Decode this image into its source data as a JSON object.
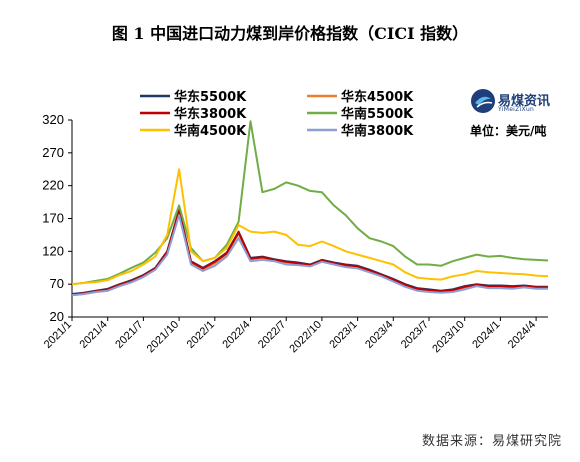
{
  "title": "图 1    中国进口动力煤到岸价格指数（CICI 指数）",
  "source": "数据来源：易煤研究院",
  "brand": {
    "name": "易煤资讯",
    "pinyin": "YiMeiZiXun",
    "logo_icon": "yimei-logo-icon"
  },
  "unit": "单位：美元/吨",
  "chart_data": {
    "type": "line",
    "ylim": [
      20,
      320
    ],
    "yticks": [
      20,
      70,
      120,
      170,
      220,
      270,
      320
    ],
    "xtick_labels": [
      "2021/1",
      "2021/4",
      "2021/7",
      "2021/10",
      "2022/1",
      "2022/4",
      "2022/7",
      "2022/10",
      "2023/1",
      "2023/4",
      "2023/7",
      "2023/10",
      "2024/1",
      "2024/4"
    ],
    "grid": false,
    "legend_position": "top",
    "series": [
      {
        "name": "华东5500K",
        "color": "#1f3864",
        "points": [
          [
            "2021/1",
            55
          ],
          [
            "2021/2",
            57
          ],
          [
            "2021/3",
            60
          ],
          [
            "2021/4",
            63
          ],
          [
            "2021/5",
            70
          ],
          [
            "2021/6",
            76
          ],
          [
            "2021/7",
            84
          ],
          [
            "2021/8",
            95
          ],
          [
            "2021/9",
            120
          ],
          [
            "2021/10",
            183
          ],
          [
            "2021/11",
            105
          ],
          [
            "2021/12",
            95
          ],
          [
            "2022/1",
            105
          ],
          [
            "2022/2",
            118
          ],
          [
            "2022/3",
            150
          ],
          [
            "2022/4",
            110
          ],
          [
            "2022/5",
            112
          ],
          [
            "2022/6",
            108
          ],
          [
            "2022/7",
            105
          ],
          [
            "2022/8",
            103
          ],
          [
            "2022/9",
            100
          ],
          [
            "2022/10",
            107
          ],
          [
            "2022/11",
            103
          ],
          [
            "2022/12",
            100
          ],
          [
            "2023/1",
            98
          ],
          [
            "2023/2",
            92
          ],
          [
            "2023/3",
            85
          ],
          [
            "2023/4",
            78
          ],
          [
            "2023/5",
            70
          ],
          [
            "2023/6",
            64
          ],
          [
            "2023/7",
            62
          ],
          [
            "2023/8",
            60
          ],
          [
            "2023/9",
            62
          ],
          [
            "2023/10",
            67
          ],
          [
            "2023/11",
            70
          ],
          [
            "2023/12",
            68
          ],
          [
            "2024/1",
            68
          ],
          [
            "2024/2",
            67
          ],
          [
            "2024/3",
            68
          ],
          [
            "2024/4",
            66
          ],
          [
            "2024/5",
            66
          ]
        ]
      },
      {
        "name": "华东4500K",
        "color": "#ed7d31",
        "points": [
          [
            "2021/1",
            53
          ],
          [
            "2021/2",
            55
          ],
          [
            "2021/3",
            58
          ],
          [
            "2021/4",
            60
          ],
          [
            "2021/5",
            67
          ],
          [
            "2021/6",
            73
          ],
          [
            "2021/7",
            81
          ],
          [
            "2021/8",
            92
          ],
          [
            "2021/9",
            117
          ],
          [
            "2021/10",
            180
          ],
          [
            "2021/11",
            102
          ],
          [
            "2021/12",
            92
          ],
          [
            "2022/1",
            102
          ],
          [
            "2022/2",
            115
          ],
          [
            "2022/3",
            147
          ],
          [
            "2022/4",
            108
          ],
          [
            "2022/5",
            110
          ],
          [
            "2022/6",
            106
          ],
          [
            "2022/7",
            103
          ],
          [
            "2022/8",
            101
          ],
          [
            "2022/9",
            98
          ],
          [
            "2022/10",
            105
          ],
          [
            "2022/11",
            101
          ],
          [
            "2022/12",
            98
          ],
          [
            "2023/1",
            96
          ],
          [
            "2023/2",
            90
          ],
          [
            "2023/3",
            83
          ],
          [
            "2023/4",
            76
          ],
          [
            "2023/5",
            68
          ],
          [
            "2023/6",
            62
          ],
          [
            "2023/7",
            60
          ],
          [
            "2023/8",
            58
          ],
          [
            "2023/9",
            60
          ],
          [
            "2023/10",
            65
          ],
          [
            "2023/11",
            68
          ],
          [
            "2023/12",
            66
          ],
          [
            "2024/1",
            66
          ],
          [
            "2024/2",
            65
          ],
          [
            "2024/3",
            66
          ],
          [
            "2024/4",
            64
          ],
          [
            "2024/5",
            64
          ]
        ]
      },
      {
        "name": "华东3800K",
        "color": "#c00000",
        "points": [
          [
            "2021/1",
            54
          ],
          [
            "2021/2",
            56
          ],
          [
            "2021/3",
            59
          ],
          [
            "2021/4",
            62
          ],
          [
            "2021/5",
            69
          ],
          [
            "2021/6",
            75
          ],
          [
            "2021/7",
            83
          ],
          [
            "2021/8",
            94
          ],
          [
            "2021/9",
            119
          ],
          [
            "2021/10",
            182
          ],
          [
            "2021/11",
            104
          ],
          [
            "2021/12",
            94
          ],
          [
            "2022/1",
            104
          ],
          [
            "2022/2",
            117
          ],
          [
            "2022/3",
            149
          ],
          [
            "2022/4",
            109
          ],
          [
            "2022/5",
            111
          ],
          [
            "2022/6",
            107
          ],
          [
            "2022/7",
            104
          ],
          [
            "2022/8",
            102
          ],
          [
            "2022/9",
            99
          ],
          [
            "2022/10",
            106
          ],
          [
            "2022/11",
            102
          ],
          [
            "2022/12",
            99
          ],
          [
            "2023/1",
            97
          ],
          [
            "2023/2",
            91
          ],
          [
            "2023/3",
            84
          ],
          [
            "2023/4",
            77
          ],
          [
            "2023/5",
            69
          ],
          [
            "2023/6",
            63
          ],
          [
            "2023/7",
            61
          ],
          [
            "2023/8",
            59
          ],
          [
            "2023/9",
            61
          ],
          [
            "2023/10",
            66
          ],
          [
            "2023/11",
            69
          ],
          [
            "2023/12",
            67
          ],
          [
            "2024/1",
            67
          ],
          [
            "2024/2",
            66
          ],
          [
            "2024/3",
            67
          ],
          [
            "2024/4",
            65
          ],
          [
            "2024/5",
            65
          ]
        ]
      },
      {
        "name": "华南5500K",
        "color": "#70ad47",
        "points": [
          [
            "2021/1",
            70
          ],
          [
            "2021/2",
            72
          ],
          [
            "2021/3",
            75
          ],
          [
            "2021/4",
            78
          ],
          [
            "2021/5",
            86
          ],
          [
            "2021/6",
            95
          ],
          [
            "2021/7",
            103
          ],
          [
            "2021/8",
            118
          ],
          [
            "2021/9",
            140
          ],
          [
            "2021/10",
            190
          ],
          [
            "2021/11",
            125
          ],
          [
            "2021/12",
            105
          ],
          [
            "2022/1",
            110
          ],
          [
            "2022/2",
            130
          ],
          [
            "2022/3",
            165
          ],
          [
            "2022/4",
            318
          ],
          [
            "2022/5",
            210
          ],
          [
            "2022/6",
            215
          ],
          [
            "2022/7",
            225
          ],
          [
            "2022/8",
            220
          ],
          [
            "2022/9",
            212
          ],
          [
            "2022/10",
            210
          ],
          [
            "2022/11",
            190
          ],
          [
            "2022/12",
            175
          ],
          [
            "2023/1",
            155
          ],
          [
            "2023/2",
            140
          ],
          [
            "2023/3",
            135
          ],
          [
            "2023/4",
            128
          ],
          [
            "2023/5",
            112
          ],
          [
            "2023/6",
            100
          ],
          [
            "2023/7",
            100
          ],
          [
            "2023/8",
            98
          ],
          [
            "2023/9",
            105
          ],
          [
            "2023/10",
            110
          ],
          [
            "2023/11",
            115
          ],
          [
            "2023/12",
            112
          ],
          [
            "2024/1",
            113
          ],
          [
            "2024/2",
            110
          ],
          [
            "2024/3",
            108
          ],
          [
            "2024/4",
            107
          ],
          [
            "2024/5",
            106
          ]
        ]
      },
      {
        "name": "华南4500K",
        "color": "#ffc000",
        "points": [
          [
            "2021/1",
            70
          ],
          [
            "2021/2",
            72
          ],
          [
            "2021/3",
            73
          ],
          [
            "2021/4",
            76
          ],
          [
            "2021/5",
            84
          ],
          [
            "2021/6",
            90
          ],
          [
            "2021/7",
            100
          ],
          [
            "2021/8",
            112
          ],
          [
            "2021/9",
            145
          ],
          [
            "2021/10",
            245
          ],
          [
            "2021/11",
            120
          ],
          [
            "2021/12",
            105
          ],
          [
            "2022/1",
            110
          ],
          [
            "2022/2",
            125
          ],
          [
            "2022/3",
            160
          ],
          [
            "2022/4",
            150
          ],
          [
            "2022/5",
            148
          ],
          [
            "2022/6",
            150
          ],
          [
            "2022/7",
            145
          ],
          [
            "2022/8",
            130
          ],
          [
            "2022/9",
            128
          ],
          [
            "2022/10",
            135
          ],
          [
            "2022/11",
            128
          ],
          [
            "2022/12",
            120
          ],
          [
            "2023/1",
            115
          ],
          [
            "2023/2",
            110
          ],
          [
            "2023/3",
            105
          ],
          [
            "2023/4",
            100
          ],
          [
            "2023/5",
            88
          ],
          [
            "2023/6",
            80
          ],
          [
            "2023/7",
            78
          ],
          [
            "2023/8",
            77
          ],
          [
            "2023/9",
            82
          ],
          [
            "2023/10",
            85
          ],
          [
            "2023/11",
            90
          ],
          [
            "2023/12",
            88
          ],
          [
            "2024/1",
            87
          ],
          [
            "2024/2",
            86
          ],
          [
            "2024/3",
            85
          ],
          [
            "2024/4",
            83
          ],
          [
            "2024/5",
            82
          ]
        ]
      },
      {
        "name": "华南3800K",
        "color": "#8e9fd6",
        "points": [
          [
            "2021/1",
            53
          ],
          [
            "2021/2",
            55
          ],
          [
            "2021/3",
            58
          ],
          [
            "2021/4",
            60
          ],
          [
            "2021/5",
            67
          ],
          [
            "2021/6",
            73
          ],
          [
            "2021/7",
            81
          ],
          [
            "2021/8",
            92
          ],
          [
            "2021/9",
            115
          ],
          [
            "2021/10",
            175
          ],
          [
            "2021/11",
            100
          ],
          [
            "2021/12",
            90
          ],
          [
            "2022/1",
            98
          ],
          [
            "2022/2",
            112
          ],
          [
            "2022/3",
            140
          ],
          [
            "2022/4",
            105
          ],
          [
            "2022/5",
            107
          ],
          [
            "2022/6",
            105
          ],
          [
            "2022/7",
            100
          ],
          [
            "2022/8",
            99
          ],
          [
            "2022/9",
            97
          ],
          [
            "2022/10",
            104
          ],
          [
            "2022/11",
            100
          ],
          [
            "2022/12",
            96
          ],
          [
            "2023/1",
            94
          ],
          [
            "2023/2",
            88
          ],
          [
            "2023/3",
            82
          ],
          [
            "2023/4",
            74
          ],
          [
            "2023/5",
            66
          ],
          [
            "2023/6",
            60
          ],
          [
            "2023/7",
            58
          ],
          [
            "2023/8",
            57
          ],
          [
            "2023/9",
            58
          ],
          [
            "2023/10",
            62
          ],
          [
            "2023/11",
            67
          ],
          [
            "2023/12",
            64
          ],
          [
            "2024/1",
            64
          ],
          [
            "2024/2",
            63
          ],
          [
            "2024/3",
            65
          ],
          [
            "2024/4",
            63
          ],
          [
            "2024/5",
            63
          ]
        ]
      }
    ]
  }
}
